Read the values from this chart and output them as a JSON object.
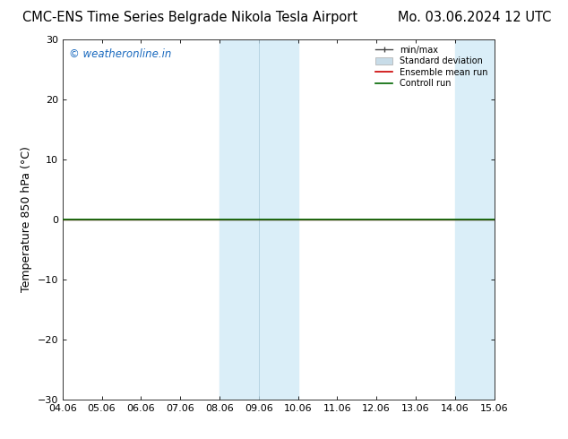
{
  "title_left": "CMC-ENS Time Series Belgrade Nikola Tesla Airport",
  "title_right": "Mo. 03.06.2024 12 UTC",
  "ylabel": "Temperature 850 hPa (°C)",
  "ylim": [
    -30,
    30
  ],
  "yticks": [
    -30,
    -20,
    -10,
    0,
    10,
    20,
    30
  ],
  "xtick_labels": [
    "04.06",
    "05.06",
    "06.06",
    "07.06",
    "08.06",
    "09.06",
    "10.06",
    "11.06",
    "12.06",
    "13.06",
    "14.06",
    "15.06"
  ],
  "watermark": "© weatheronline.in",
  "watermark_color": "#1a6abf",
  "shade_bands": [
    {
      "xstart": 4,
      "xend": 5,
      "color": "#daeef8"
    },
    {
      "xstart": 5,
      "xend": 6,
      "color": "#daeef8"
    },
    {
      "xstart": 10,
      "xend": 11,
      "color": "#daeef8"
    },
    {
      "xstart": 11,
      "xend": 12,
      "color": "#daeef8"
    }
  ],
  "shade_dividers": [
    5,
    11
  ],
  "mean_line_color": "#cc0000",
  "control_line_color": "#006600",
  "minmax_line_color": "#444444",
  "std_fill_color": "#cccccc",
  "background_color": "#ffffff",
  "plot_bg_color": "#ffffff",
  "legend_entries": [
    "min/max",
    "Standard deviation",
    "Ensemble mean run",
    "Controll run"
  ],
  "flat_line_value": 0.0,
  "title_fontsize": 10.5,
  "tick_fontsize": 8,
  "ylabel_fontsize": 9
}
